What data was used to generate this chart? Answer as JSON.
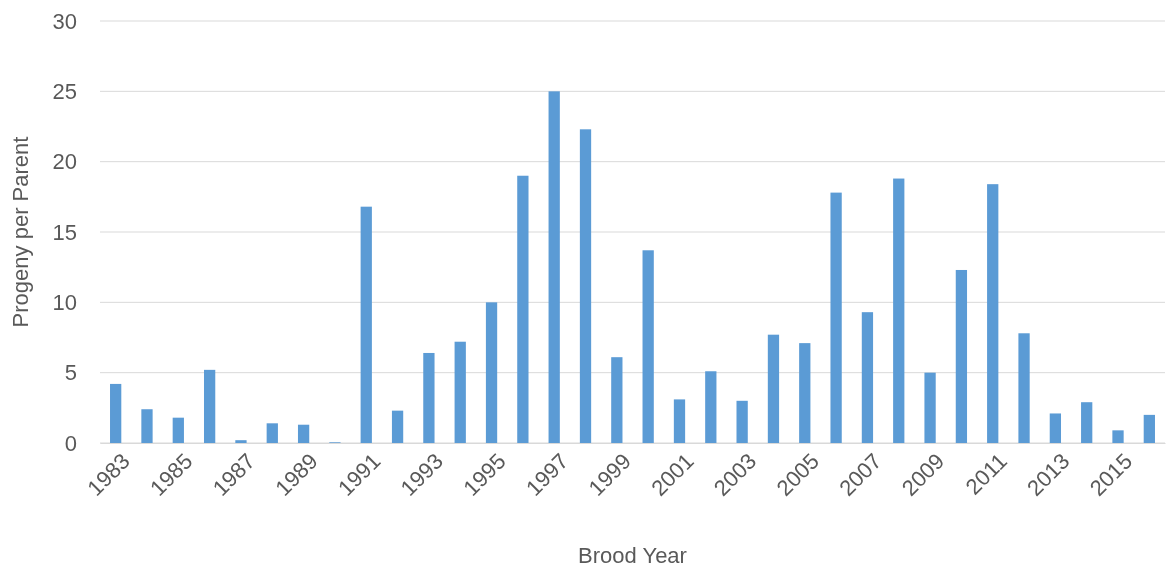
{
  "chart_data": {
    "type": "bar",
    "xlabel": "Brood Year",
    "ylabel": "Progeny per Parent",
    "categories": [
      "1983",
      null,
      "1985",
      null,
      "1987",
      null,
      "1989",
      null,
      "1991",
      null,
      "1993",
      null,
      "1995",
      null,
      "1997",
      null,
      "1999",
      null,
      "2001",
      null,
      "2003",
      null,
      "2005",
      null,
      "2007",
      null,
      "2009",
      null,
      "2011",
      null,
      "2013",
      null,
      "2015",
      null
    ],
    "values": [
      4.2,
      2.4,
      1.8,
      5.2,
      0.2,
      1.4,
      1.3,
      0.05,
      16.8,
      2.3,
      6.4,
      7.2,
      10.0,
      19.0,
      25.0,
      22.3,
      6.1,
      13.7,
      3.1,
      5.1,
      3.0,
      7.7,
      7.1,
      17.8,
      9.3,
      18.8,
      5.0,
      12.3,
      18.4,
      7.8,
      2.1,
      2.9,
      0.9,
      2.0
    ],
    "color": "#5b9bd5",
    "ylim": [
      0,
      30
    ],
    "yticks": [
      0,
      5,
      10,
      15,
      20,
      25,
      30
    ],
    "grid": "y"
  }
}
